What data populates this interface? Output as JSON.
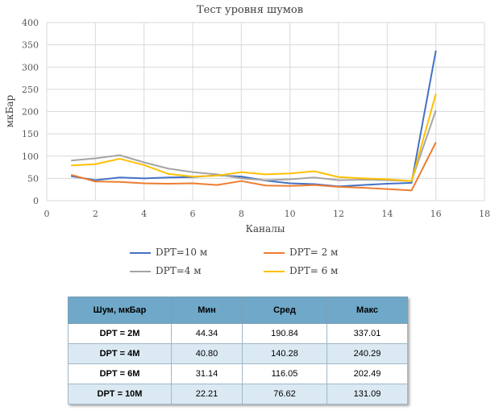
{
  "chart_data": {
    "type": "line",
    "title": "Тест уровня шумов",
    "xlabel": "Каналы",
    "ylabel": "мкБар",
    "xlim": [
      0,
      18
    ],
    "ylim": [
      0,
      400
    ],
    "xticks": [
      0,
      2,
      4,
      6,
      8,
      10,
      12,
      14,
      16,
      18
    ],
    "yticks": [
      0,
      50,
      100,
      150,
      200,
      250,
      300,
      350,
      400
    ],
    "grid": true,
    "legend_position": "bottom",
    "x": [
      1,
      2,
      3,
      4,
      5,
      6,
      7,
      8,
      9,
      10,
      11,
      12,
      13,
      14,
      15,
      16
    ],
    "series": [
      {
        "name": "DPT=10 м",
        "color": "#4472c4",
        "values": [
          55,
          46,
          52,
          50,
          52,
          53,
          57,
          54,
          45,
          39,
          37,
          32,
          35,
          38,
          40,
          337
        ]
      },
      {
        "name": "DPT= 2 м",
        "color": "#ed7d31",
        "values": [
          58,
          43,
          42,
          39,
          38,
          39,
          35,
          44,
          34,
          33,
          35,
          31,
          29,
          26,
          23,
          131
        ]
      },
      {
        "name": "DPT=4 м",
        "color": "#a5a5a5",
        "values": [
          90,
          95,
          102,
          86,
          72,
          64,
          59,
          50,
          46,
          48,
          52,
          46,
          47,
          46,
          44,
          203
        ]
      },
      {
        "name": "DPT= 6 м",
        "color": "#ffc000",
        "values": [
          79,
          82,
          94,
          80,
          60,
          54,
          56,
          64,
          59,
          61,
          66,
          53,
          50,
          48,
          44,
          240
        ]
      }
    ]
  },
  "table": {
    "headers": [
      "Шум, мкБар",
      "Мин",
      "Сред",
      "Макс"
    ],
    "rows": [
      [
        "DPT = 2М",
        "44.34",
        "190.84",
        "337.01"
      ],
      [
        "DPT = 4М",
        "40.80",
        "140.28",
        "240.29"
      ],
      [
        "DPT = 6М",
        "31.14",
        "116.05",
        "202.49"
      ],
      [
        "DPT = 10М",
        "22.21",
        "76.62",
        "131.09"
      ]
    ]
  }
}
